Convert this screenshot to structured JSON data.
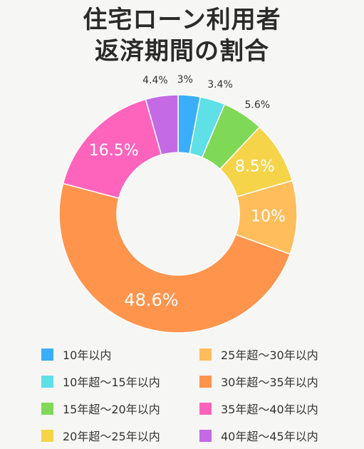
{
  "title_lines": [
    "住宅ローン利用者",
    "返済期間の割合"
  ],
  "chart_data": {
    "type": "pie",
    "variant": "donut",
    "categories": [
      "10年以内",
      "10年超〜15年以内",
      "15年超〜20年以内",
      "20年超〜25年以内",
      "25年超〜30年以内",
      "30年超〜35年以内",
      "35年超〜40年以内",
      "40年超〜45年以内"
    ],
    "values": [
      3,
      3.4,
      5.6,
      8.5,
      10,
      48.6,
      16.5,
      4.4
    ],
    "labels": [
      "3%",
      "3.4%",
      "5.6%",
      "8.5%",
      "10%",
      "48.6%",
      "16.5%",
      "4.4%"
    ],
    "colors": [
      "#3aaef8",
      "#5ee0e6",
      "#7fd957",
      "#f6d44a",
      "#ffbd5c",
      "#ff944d",
      "#ff64bd",
      "#c36ae4"
    ],
    "legend_placement": "bottom"
  }
}
